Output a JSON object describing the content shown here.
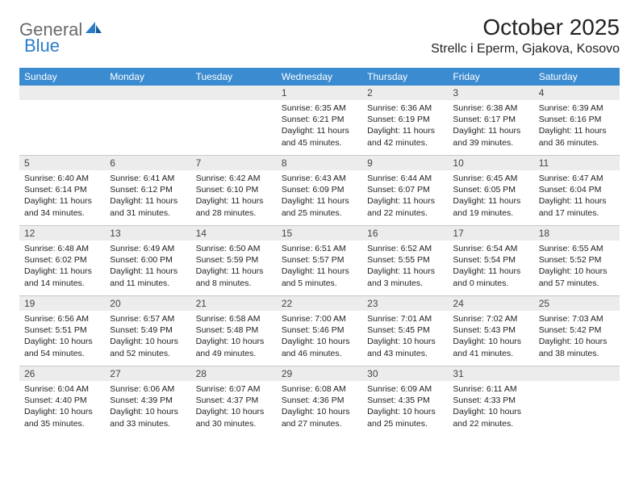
{
  "logo": {
    "text1": "General",
    "text2": "Blue"
  },
  "title": "October 2025",
  "location": "Strellc i Eperm, Gjakova, Kosovo",
  "colors": {
    "header_bg": "#3b8bd0",
    "header_text": "#ffffff",
    "daynum_bg": "#ececec",
    "border": "#c8c8c8",
    "logo_gray": "#6a6a6a",
    "logo_blue": "#2b7dc9",
    "text": "#222222"
  },
  "weekdays": [
    "Sunday",
    "Monday",
    "Tuesday",
    "Wednesday",
    "Thursday",
    "Friday",
    "Saturday"
  ],
  "weeks": [
    [
      {
        "n": "",
        "sunrise": "",
        "sunset": "",
        "daylight": ""
      },
      {
        "n": "",
        "sunrise": "",
        "sunset": "",
        "daylight": ""
      },
      {
        "n": "",
        "sunrise": "",
        "sunset": "",
        "daylight": ""
      },
      {
        "n": "1",
        "sunrise": "Sunrise: 6:35 AM",
        "sunset": "Sunset: 6:21 PM",
        "daylight": "Daylight: 11 hours and 45 minutes."
      },
      {
        "n": "2",
        "sunrise": "Sunrise: 6:36 AM",
        "sunset": "Sunset: 6:19 PM",
        "daylight": "Daylight: 11 hours and 42 minutes."
      },
      {
        "n": "3",
        "sunrise": "Sunrise: 6:38 AM",
        "sunset": "Sunset: 6:17 PM",
        "daylight": "Daylight: 11 hours and 39 minutes."
      },
      {
        "n": "4",
        "sunrise": "Sunrise: 6:39 AM",
        "sunset": "Sunset: 6:16 PM",
        "daylight": "Daylight: 11 hours and 36 minutes."
      }
    ],
    [
      {
        "n": "5",
        "sunrise": "Sunrise: 6:40 AM",
        "sunset": "Sunset: 6:14 PM",
        "daylight": "Daylight: 11 hours and 34 minutes."
      },
      {
        "n": "6",
        "sunrise": "Sunrise: 6:41 AM",
        "sunset": "Sunset: 6:12 PM",
        "daylight": "Daylight: 11 hours and 31 minutes."
      },
      {
        "n": "7",
        "sunrise": "Sunrise: 6:42 AM",
        "sunset": "Sunset: 6:10 PM",
        "daylight": "Daylight: 11 hours and 28 minutes."
      },
      {
        "n": "8",
        "sunrise": "Sunrise: 6:43 AM",
        "sunset": "Sunset: 6:09 PM",
        "daylight": "Daylight: 11 hours and 25 minutes."
      },
      {
        "n": "9",
        "sunrise": "Sunrise: 6:44 AM",
        "sunset": "Sunset: 6:07 PM",
        "daylight": "Daylight: 11 hours and 22 minutes."
      },
      {
        "n": "10",
        "sunrise": "Sunrise: 6:45 AM",
        "sunset": "Sunset: 6:05 PM",
        "daylight": "Daylight: 11 hours and 19 minutes."
      },
      {
        "n": "11",
        "sunrise": "Sunrise: 6:47 AM",
        "sunset": "Sunset: 6:04 PM",
        "daylight": "Daylight: 11 hours and 17 minutes."
      }
    ],
    [
      {
        "n": "12",
        "sunrise": "Sunrise: 6:48 AM",
        "sunset": "Sunset: 6:02 PM",
        "daylight": "Daylight: 11 hours and 14 minutes."
      },
      {
        "n": "13",
        "sunrise": "Sunrise: 6:49 AM",
        "sunset": "Sunset: 6:00 PM",
        "daylight": "Daylight: 11 hours and 11 minutes."
      },
      {
        "n": "14",
        "sunrise": "Sunrise: 6:50 AM",
        "sunset": "Sunset: 5:59 PM",
        "daylight": "Daylight: 11 hours and 8 minutes."
      },
      {
        "n": "15",
        "sunrise": "Sunrise: 6:51 AM",
        "sunset": "Sunset: 5:57 PM",
        "daylight": "Daylight: 11 hours and 5 minutes."
      },
      {
        "n": "16",
        "sunrise": "Sunrise: 6:52 AM",
        "sunset": "Sunset: 5:55 PM",
        "daylight": "Daylight: 11 hours and 3 minutes."
      },
      {
        "n": "17",
        "sunrise": "Sunrise: 6:54 AM",
        "sunset": "Sunset: 5:54 PM",
        "daylight": "Daylight: 11 hours and 0 minutes."
      },
      {
        "n": "18",
        "sunrise": "Sunrise: 6:55 AM",
        "sunset": "Sunset: 5:52 PM",
        "daylight": "Daylight: 10 hours and 57 minutes."
      }
    ],
    [
      {
        "n": "19",
        "sunrise": "Sunrise: 6:56 AM",
        "sunset": "Sunset: 5:51 PM",
        "daylight": "Daylight: 10 hours and 54 minutes."
      },
      {
        "n": "20",
        "sunrise": "Sunrise: 6:57 AM",
        "sunset": "Sunset: 5:49 PM",
        "daylight": "Daylight: 10 hours and 52 minutes."
      },
      {
        "n": "21",
        "sunrise": "Sunrise: 6:58 AM",
        "sunset": "Sunset: 5:48 PM",
        "daylight": "Daylight: 10 hours and 49 minutes."
      },
      {
        "n": "22",
        "sunrise": "Sunrise: 7:00 AM",
        "sunset": "Sunset: 5:46 PM",
        "daylight": "Daylight: 10 hours and 46 minutes."
      },
      {
        "n": "23",
        "sunrise": "Sunrise: 7:01 AM",
        "sunset": "Sunset: 5:45 PM",
        "daylight": "Daylight: 10 hours and 43 minutes."
      },
      {
        "n": "24",
        "sunrise": "Sunrise: 7:02 AM",
        "sunset": "Sunset: 5:43 PM",
        "daylight": "Daylight: 10 hours and 41 minutes."
      },
      {
        "n": "25",
        "sunrise": "Sunrise: 7:03 AM",
        "sunset": "Sunset: 5:42 PM",
        "daylight": "Daylight: 10 hours and 38 minutes."
      }
    ],
    [
      {
        "n": "26",
        "sunrise": "Sunrise: 6:04 AM",
        "sunset": "Sunset: 4:40 PM",
        "daylight": "Daylight: 10 hours and 35 minutes."
      },
      {
        "n": "27",
        "sunrise": "Sunrise: 6:06 AM",
        "sunset": "Sunset: 4:39 PM",
        "daylight": "Daylight: 10 hours and 33 minutes."
      },
      {
        "n": "28",
        "sunrise": "Sunrise: 6:07 AM",
        "sunset": "Sunset: 4:37 PM",
        "daylight": "Daylight: 10 hours and 30 minutes."
      },
      {
        "n": "29",
        "sunrise": "Sunrise: 6:08 AM",
        "sunset": "Sunset: 4:36 PM",
        "daylight": "Daylight: 10 hours and 27 minutes."
      },
      {
        "n": "30",
        "sunrise": "Sunrise: 6:09 AM",
        "sunset": "Sunset: 4:35 PM",
        "daylight": "Daylight: 10 hours and 25 minutes."
      },
      {
        "n": "31",
        "sunrise": "Sunrise: 6:11 AM",
        "sunset": "Sunset: 4:33 PM",
        "daylight": "Daylight: 10 hours and 22 minutes."
      },
      {
        "n": "",
        "sunrise": "",
        "sunset": "",
        "daylight": ""
      }
    ]
  ]
}
